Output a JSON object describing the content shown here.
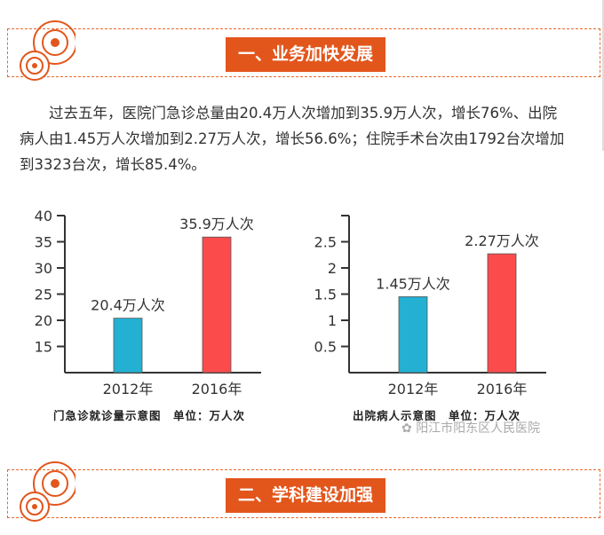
{
  "section1": {
    "title": "一、业务加快发展"
  },
  "paragraph": {
    "lines": [
      "过去五年，医院门急诊总量由20.4万人次增加到35.9万人次，增长76%、出院",
      "病人由1.45万人次增加到2.27万人次，增长56.6%；住院手术台次由1792台次增加",
      "到3323台次，增长85.4%。"
    ]
  },
  "chart_data": [
    {
      "type": "bar",
      "title": "门急诊就诊量示意图　单位：万人次",
      "categories": [
        "2012年",
        "2016年"
      ],
      "values": [
        20.4,
        35.9
      ],
      "data_labels": [
        "20.4万人次",
        "35.9万人次"
      ],
      "colors": [
        "#23b0d3",
        "#fb4b4b"
      ],
      "ylim": [
        10,
        40
      ],
      "yticks": [
        15,
        20,
        25,
        30,
        35,
        40
      ],
      "ytick_labels": [
        "15",
        "20",
        "25",
        "30",
        "35",
        "40"
      ],
      "grid": false
    },
    {
      "type": "bar",
      "title": "出院病人示意图　单位：万人次",
      "categories": [
        "2012年",
        "2016年"
      ],
      "values": [
        1.45,
        2.27
      ],
      "data_labels": [
        "1.45万人次",
        "2.27万人次"
      ],
      "colors": [
        "#23b0d3",
        "#fb4b4b"
      ],
      "ylim": [
        0,
        3
      ],
      "yticks": [
        0.5,
        1,
        1.5,
        2,
        2.5,
        3
      ],
      "ytick_labels": [
        "0.5",
        "1",
        "1.5",
        "2",
        "2.5",
        ""
      ],
      "grid": false
    }
  ],
  "watermark": "阳江市阳东区人民医院",
  "section2": {
    "title": "二、学科建设加强"
  }
}
